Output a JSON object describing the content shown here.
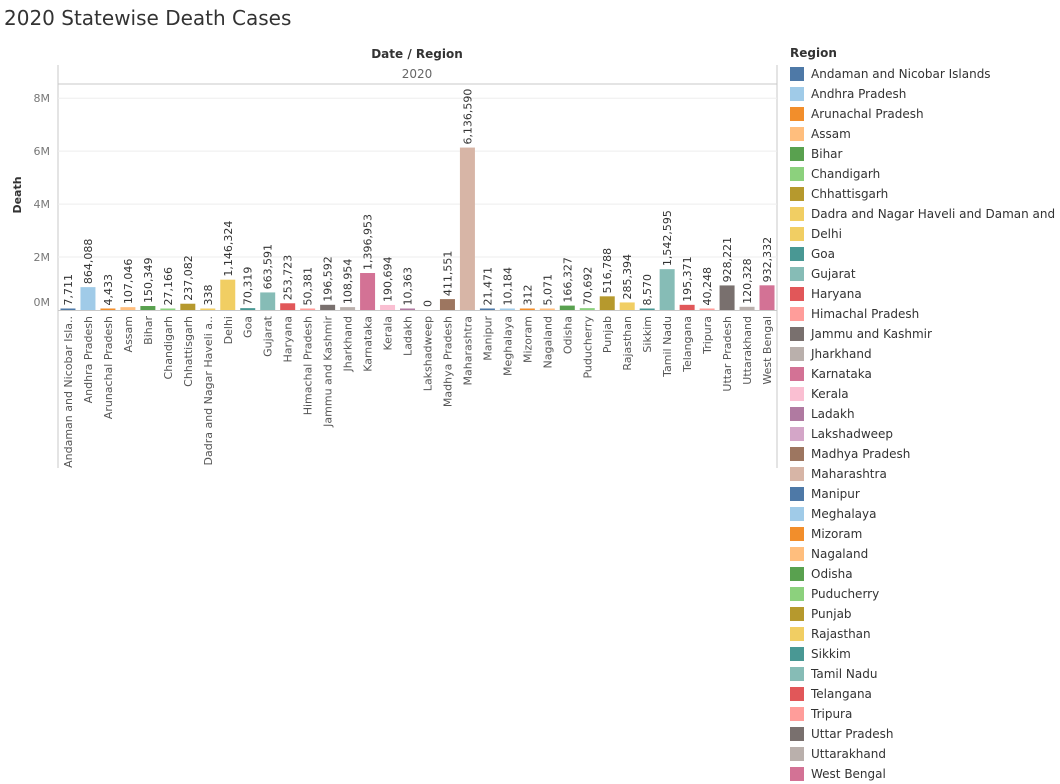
{
  "title": "2020 Statewise Death Cases",
  "chart_data": {
    "type": "bar",
    "header_title": "Date / Region",
    "header_group": "2020",
    "ylabel": "Death",
    "yticks": [
      "0M",
      "2M",
      "4M",
      "6M",
      "8M"
    ],
    "ylim": [
      0,
      8500000
    ],
    "grid": true,
    "legend_title": "Region",
    "legend_position": "right",
    "categories": [
      "Andaman and Nicobar Isla..",
      "Andhra Pradesh",
      "Arunachal Pradesh",
      "Assam",
      "Bihar",
      "Chandigarh",
      "Chhattisgarh",
      "Dadra and Nagar Haveli a..",
      "Delhi",
      "Goa",
      "Gujarat",
      "Haryana",
      "Himachal Pradesh",
      "Jammu and Kashmir",
      "Jharkhand",
      "Karnataka",
      "Kerala",
      "Ladakh",
      "Lakshadweep",
      "Madhya Pradesh",
      "Maharashtra",
      "Manipur",
      "Meghalaya",
      "Mizoram",
      "Nagaland",
      "Odisha",
      "Puducherry",
      "Punjab",
      "Rajasthan",
      "Sikkim",
      "Tamil Nadu",
      "Telangana",
      "Tripura",
      "Uttar Pradesh",
      "Uttarakhand",
      "West Bengal"
    ],
    "values": [
      7711,
      864088,
      4433,
      107046,
      150349,
      27166,
      237082,
      338,
      1146324,
      70319,
      663591,
      253723,
      50381,
      196592,
      108954,
      1396953,
      190694,
      10363,
      0,
      411551,
      6136590,
      21471,
      10184,
      312,
      5071,
      166327,
      70692,
      516788,
      285394,
      8570,
      1542595,
      195371,
      40248,
      928221,
      120328,
      932332
    ],
    "data_labels": [
      "7,711",
      "864,088",
      "4,433",
      "107,046",
      "150,349",
      "27,166",
      "237,082",
      "338",
      "1,146,324",
      "70,319",
      "663,591",
      "253,723",
      "50,381",
      "196,592",
      "108,954",
      "1,396,953",
      "190,694",
      "10,363",
      "0",
      "411,551",
      "6,136,590",
      "21,471",
      "10,184",
      "312",
      "5,071",
      "166,327",
      "70,692",
      "516,788",
      "285,394",
      "8,570",
      "1,542,595",
      "195,371",
      "40,248",
      "928,221",
      "120,328",
      "932,332"
    ],
    "colors": [
      "#4e79a7",
      "#a0cbe8",
      "#f28e2b",
      "#ffbe7d",
      "#59a14f",
      "#8cd17d",
      "#b6992d",
      "#f1ce63",
      "#f1ce63",
      "#499894",
      "#86bcb6",
      "#e15759",
      "#ff9d9a",
      "#79706e",
      "#bab0ac",
      "#d37295",
      "#fabfd2",
      "#b07aa1",
      "#d4a6c8",
      "#9d7660",
      "#d7b5a6",
      "#4e79a7",
      "#a0cbe8",
      "#f28e2b",
      "#ffbe7d",
      "#59a14f",
      "#8cd17d",
      "#b6992d",
      "#f1ce63",
      "#499894",
      "#86bcb6",
      "#e15759",
      "#ff9d9a",
      "#79706e",
      "#bab0ac",
      "#d37295"
    ],
    "legend": [
      {
        "label": "Andaman and Nicobar Islands",
        "color": "#4e79a7"
      },
      {
        "label": "Andhra Pradesh",
        "color": "#a0cbe8"
      },
      {
        "label": "Arunachal Pradesh",
        "color": "#f28e2b"
      },
      {
        "label": "Assam",
        "color": "#ffbe7d"
      },
      {
        "label": "Bihar",
        "color": "#59a14f"
      },
      {
        "label": "Chandigarh",
        "color": "#8cd17d"
      },
      {
        "label": "Chhattisgarh",
        "color": "#b6992d"
      },
      {
        "label": "Dadra and Nagar Haveli and Daman and Diu",
        "color": "#f1ce63"
      },
      {
        "label": "Delhi",
        "color": "#f1ce63"
      },
      {
        "label": "Goa",
        "color": "#499894"
      },
      {
        "label": "Gujarat",
        "color": "#86bcb6"
      },
      {
        "label": "Haryana",
        "color": "#e15759"
      },
      {
        "label": "Himachal Pradesh",
        "color": "#ff9d9a"
      },
      {
        "label": "Jammu and Kashmir",
        "color": "#79706e"
      },
      {
        "label": "Jharkhand",
        "color": "#bab0ac"
      },
      {
        "label": "Karnataka",
        "color": "#d37295"
      },
      {
        "label": "Kerala",
        "color": "#fabfd2"
      },
      {
        "label": "Ladakh",
        "color": "#b07aa1"
      },
      {
        "label": "Lakshadweep",
        "color": "#d4a6c8"
      },
      {
        "label": "Madhya Pradesh",
        "color": "#9d7660"
      },
      {
        "label": "Maharashtra",
        "color": "#d7b5a6"
      },
      {
        "label": "Manipur",
        "color": "#4e79a7"
      },
      {
        "label": "Meghalaya",
        "color": "#a0cbe8"
      },
      {
        "label": "Mizoram",
        "color": "#f28e2b"
      },
      {
        "label": "Nagaland",
        "color": "#ffbe7d"
      },
      {
        "label": "Odisha",
        "color": "#59a14f"
      },
      {
        "label": "Puducherry",
        "color": "#8cd17d"
      },
      {
        "label": "Punjab",
        "color": "#b6992d"
      },
      {
        "label": "Rajasthan",
        "color": "#f1ce63"
      },
      {
        "label": "Sikkim",
        "color": "#499894"
      },
      {
        "label": "Tamil Nadu",
        "color": "#86bcb6"
      },
      {
        "label": "Telangana",
        "color": "#e15759"
      },
      {
        "label": "Tripura",
        "color": "#ff9d9a"
      },
      {
        "label": "Uttar Pradesh",
        "color": "#79706e"
      },
      {
        "label": "Uttarakhand",
        "color": "#bab0ac"
      },
      {
        "label": "West Bengal",
        "color": "#d37295"
      }
    ]
  }
}
